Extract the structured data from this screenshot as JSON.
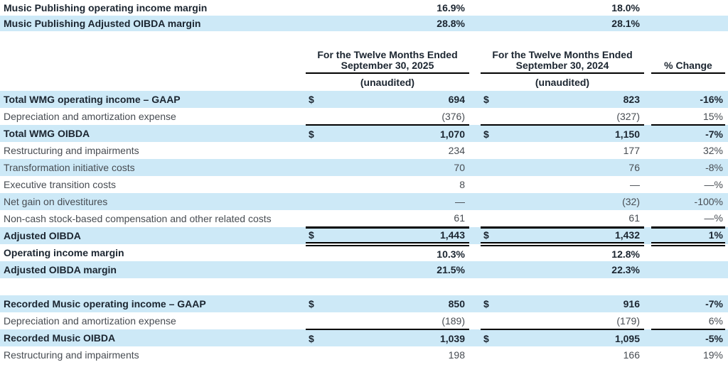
{
  "colors": {
    "highlight": "#cde9f7",
    "bold_text": "#1b2530",
    "regular_text": "#474c52",
    "rule": "#000000"
  },
  "header": {
    "col_2025": {
      "line1": "For the Twelve Months Ended",
      "line2": "September 30, 2025",
      "sub": "(unaudited)"
    },
    "col_2024": {
      "line1": "For the Twelve Months Ended",
      "line2": "September 30, 2024",
      "sub": "(unaudited)"
    },
    "change_label": "% Change"
  },
  "intro_rows": [
    {
      "label": "Music Publishing operating income margin",
      "cur2025": "",
      "fy2025": "16.9%",
      "cur2024": "",
      "fy2024": "18.0%",
      "pct_change": "",
      "bold": true,
      "shade": false,
      "rule": "none"
    },
    {
      "label": "Music Publishing Adjusted OIBDA margin",
      "cur2025": "",
      "fy2025": "28.8%",
      "cur2024": "",
      "fy2024": "28.1%",
      "pct_change": "",
      "bold": true,
      "shade": true,
      "rule": "none"
    }
  ],
  "rows": [
    {
      "label": "Total WMG operating income – GAAP",
      "cur2025": "$",
      "fy2025": "694",
      "cur2024": "$",
      "fy2024": "823",
      "pct_change": "-16%",
      "bold": true,
      "shade": true,
      "rule": "none"
    },
    {
      "label": "Depreciation and amortization expense",
      "cur2025": "",
      "fy2025": "(376)",
      "cur2024": "",
      "fy2024": "(327)",
      "pct_change": "15%",
      "bold": false,
      "shade": false,
      "rule": "single"
    },
    {
      "label": "Total WMG OIBDA",
      "cur2025": "$",
      "fy2025": "1,070",
      "cur2024": "$",
      "fy2024": "1,150",
      "pct_change": "-7%",
      "bold": true,
      "shade": true,
      "rule": "none"
    },
    {
      "label": "Restructuring and impairments",
      "cur2025": "",
      "fy2025": "234",
      "cur2024": "",
      "fy2024": "177",
      "pct_change": "32%",
      "bold": false,
      "shade": false,
      "rule": "none"
    },
    {
      "label": "Transformation initiative costs",
      "cur2025": "",
      "fy2025": "70",
      "cur2024": "",
      "fy2024": "76",
      "pct_change": "-8%",
      "bold": false,
      "shade": true,
      "rule": "none"
    },
    {
      "label": "Executive transition costs",
      "cur2025": "",
      "fy2025": "8",
      "cur2024": "",
      "fy2024": "—",
      "pct_change": "—%",
      "bold": false,
      "shade": false,
      "rule": "none"
    },
    {
      "label": "Net gain on divestitures",
      "cur2025": "",
      "fy2025": "—",
      "cur2024": "",
      "fy2024": "(32)",
      "pct_change": "-100%",
      "bold": false,
      "shade": true,
      "rule": "none"
    },
    {
      "label": "Non-cash stock-based compensation and other related costs",
      "cur2025": "",
      "fy2025": "61",
      "cur2024": "",
      "fy2024": "61",
      "pct_change": "—%",
      "bold": false,
      "shade": false,
      "rule": "thick"
    },
    {
      "label": "Adjusted OIBDA",
      "cur2025": "$",
      "fy2025": "1,443",
      "cur2024": "$",
      "fy2024": "1,432",
      "pct_change": "1%",
      "bold": true,
      "shade": true,
      "rule": "double"
    },
    {
      "label": "Operating income margin",
      "cur2025": "",
      "fy2025": "10.3%",
      "cur2024": "",
      "fy2024": "12.8%",
      "pct_change": "",
      "bold": true,
      "shade": false,
      "rule": "none"
    },
    {
      "label": "Adjusted OIBDA margin",
      "cur2025": "",
      "fy2025": "21.5%",
      "cur2024": "",
      "fy2024": "22.3%",
      "pct_change": "",
      "bold": true,
      "shade": true,
      "rule": "none"
    },
    {
      "spacer": true
    },
    {
      "label": "Recorded Music operating income – GAAP",
      "cur2025": "$",
      "fy2025": "850",
      "cur2024": "$",
      "fy2024": "916",
      "pct_change": "-7%",
      "bold": true,
      "shade": true,
      "rule": "none"
    },
    {
      "label": "Depreciation and amortization expense",
      "cur2025": "",
      "fy2025": "(189)",
      "cur2024": "",
      "fy2024": "(179)",
      "pct_change": "6%",
      "bold": false,
      "shade": false,
      "rule": "single"
    },
    {
      "label": "Recorded Music OIBDA",
      "cur2025": "$",
      "fy2025": "1,039",
      "cur2024": "$",
      "fy2024": "1,095",
      "pct_change": "-5%",
      "bold": true,
      "shade": true,
      "rule": "none"
    },
    {
      "label": "Restructuring and impairments",
      "cur2025": "",
      "fy2025": "198",
      "cur2024": "",
      "fy2024": "166",
      "pct_change": "19%",
      "bold": false,
      "shade": false,
      "rule": "none"
    }
  ]
}
